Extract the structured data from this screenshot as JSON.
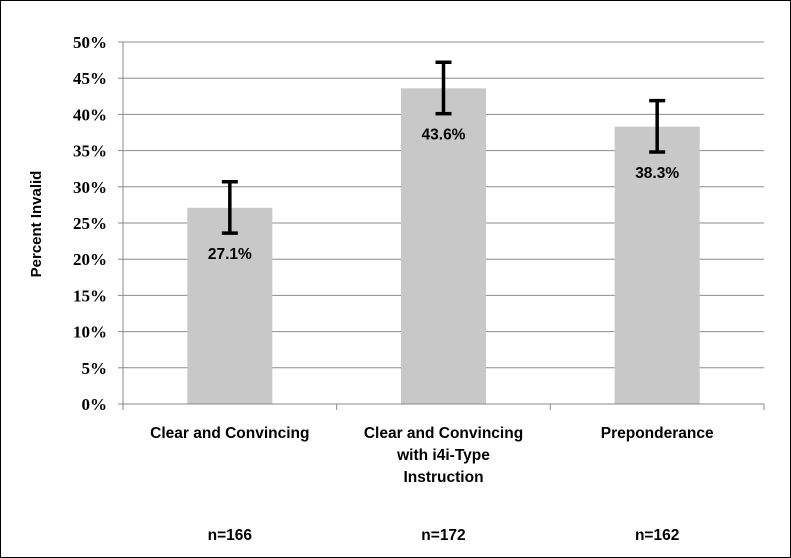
{
  "chart_data": {
    "type": "bar",
    "title": "",
    "xlabel": "",
    "ylabel": "Percent Invalid",
    "ylim": [
      0,
      50
    ],
    "y_tick_values": [
      0,
      5,
      10,
      15,
      20,
      25,
      30,
      35,
      40,
      45,
      50
    ],
    "y_tick_suffix": "%",
    "grid": true,
    "legend": "none",
    "bar_color": "#c8c8c8",
    "grid_color": "#8c8c8c",
    "error_bar_color": "#000000",
    "categories": [
      [
        "Clear and Convincing"
      ],
      [
        "Clear and Convincing",
        "with i4i-Type",
        "Instruction"
      ],
      [
        "Preponderance"
      ]
    ],
    "values": [
      27.1,
      43.6,
      38.3
    ],
    "data_labels": [
      "27.1%",
      "43.6%",
      "38.3%"
    ],
    "error_bars": [
      {
        "low": 23.6,
        "high": 30.7
      },
      {
        "low": 40.1,
        "high": 47.2
      },
      {
        "low": 34.8,
        "high": 41.9
      }
    ],
    "sample_sizes": [
      "n=166",
      "n=172",
      "n=162"
    ]
  }
}
